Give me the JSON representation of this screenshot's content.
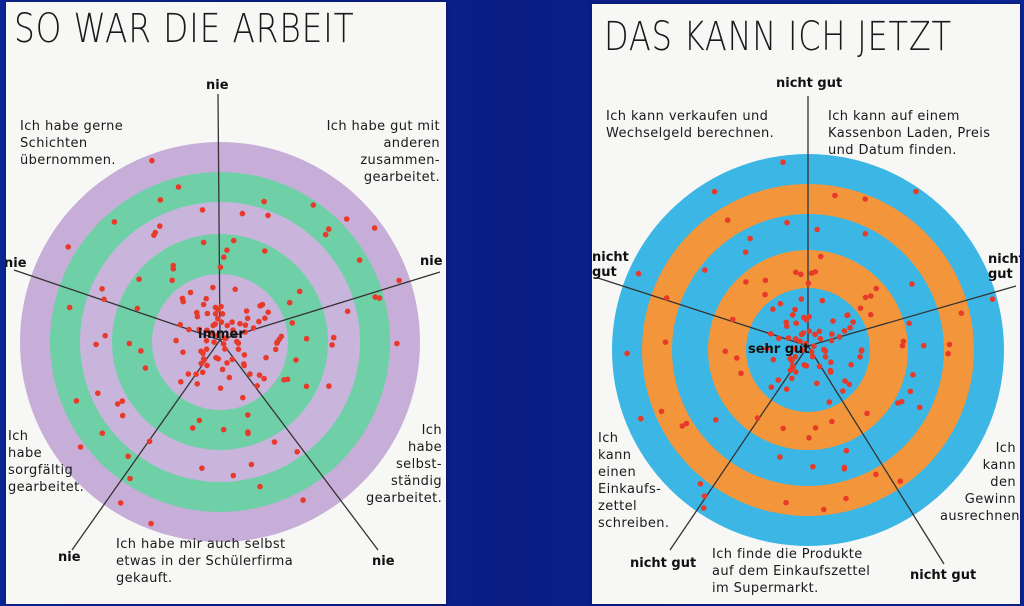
{
  "left_poster": {
    "title": "SO WAR DIE ARBEIT",
    "center_label": "immer",
    "axis_labels": {
      "top": "nie",
      "left": "nie",
      "right": "nie",
      "bottom_left": "nie",
      "bottom_right": "nie"
    },
    "statements": {
      "top_left": "Ich habe gerne\nSchichten\nübernommen.",
      "top_right": "Ich habe gut mit\nanderen\nzusammen-\ngearbeitet.",
      "left": "Ich\nhabe\nsorgfältig\ngearbeitet.",
      "right": "Ich\nhabe\nselbst-\nständig\ngearbeitet.",
      "bottom": "Ich habe mir auch selbst\netwas in der Schülerfirma\ngekauft."
    },
    "colors": {
      "outer": "#c6aed8",
      "green": "#6fd0a8",
      "lavender": "#c9b4dc",
      "dot": "#e83a2a"
    }
  },
  "right_poster": {
    "title": "DAS KANN ICH JETZT",
    "center_label": "sehr gut",
    "axis_labels": {
      "top": "nicht gut",
      "left": "nicht\ngut",
      "right": "nicht\ngut",
      "bottom_left": "nicht gut",
      "bottom_right": "nicht gut"
    },
    "statements": {
      "top_left": "Ich kann verkaufen und\nWechselgeld berechnen.",
      "top_right": "Ich kann auf einem\nKassenbon Laden, Preis\nund Datum finden.",
      "left": "Ich\nkann\neinen\nEinkaufs-\nzettel\nschreiben.",
      "right": "Ich\nkann\nden Gewinn\nausrechnen.",
      "bottom": "Ich finde die Produkte\nauf dem Einkaufszettel\nim Supermarkt."
    },
    "colors": {
      "outer": "#3cb6e4",
      "orange": "#f3953a",
      "dot": "#e83a2a"
    }
  }
}
